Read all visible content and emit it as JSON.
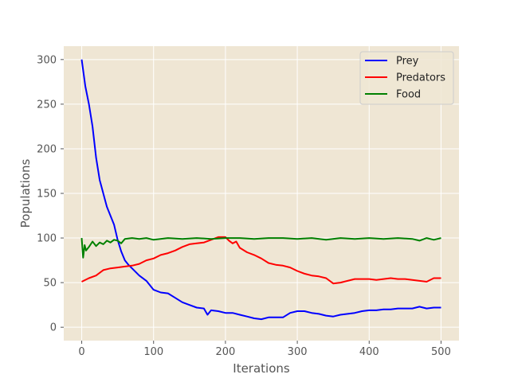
{
  "chart_data": {
    "type": "line",
    "title": "",
    "xlabel": "Iterations",
    "ylabel": "Populations",
    "xlim": [
      -25,
      525
    ],
    "ylim": [
      -15,
      315
    ],
    "xticks": [
      0,
      100,
      200,
      300,
      400,
      500
    ],
    "yticks": [
      0,
      50,
      100,
      150,
      200,
      250,
      300
    ],
    "grid": true,
    "legend_position": "top-right",
    "background": "#efe6d4",
    "series": [
      {
        "name": "Prey",
        "color": "#0000ff",
        "x": [
          0,
          5,
          10,
          15,
          20,
          25,
          30,
          35,
          40,
          45,
          50,
          55,
          60,
          65,
          70,
          80,
          90,
          100,
          110,
          120,
          130,
          140,
          150,
          160,
          170,
          175,
          180,
          190,
          200,
          210,
          220,
          230,
          240,
          250,
          260,
          270,
          280,
          290,
          300,
          310,
          320,
          330,
          340,
          350,
          360,
          370,
          380,
          390,
          400,
          410,
          420,
          430,
          440,
          450,
          460,
          470,
          480,
          490,
          500
        ],
        "values": [
          300,
          270,
          250,
          225,
          190,
          165,
          150,
          135,
          125,
          115,
          98,
          85,
          75,
          70,
          66,
          58,
          52,
          42,
          39,
          38,
          33,
          28,
          25,
          22,
          21,
          14,
          19,
          18,
          16,
          16,
          14,
          12,
          10,
          9,
          11,
          11,
          11,
          16,
          18,
          18,
          16,
          15,
          13,
          12,
          14,
          15,
          16,
          18,
          19,
          19,
          20,
          20,
          21,
          21,
          21,
          23,
          21,
          22,
          22
        ]
      },
      {
        "name": "Predators",
        "color": "#ff0000",
        "x": [
          0,
          10,
          20,
          30,
          40,
          50,
          60,
          70,
          80,
          90,
          100,
          110,
          120,
          130,
          140,
          150,
          160,
          170,
          180,
          190,
          200,
          205,
          210,
          215,
          220,
          230,
          240,
          250,
          260,
          270,
          280,
          290,
          300,
          310,
          320,
          330,
          340,
          350,
          360,
          370,
          380,
          390,
          400,
          410,
          420,
          430,
          440,
          450,
          460,
          470,
          480,
          490,
          500
        ],
        "values": [
          51,
          55,
          58,
          64,
          66,
          67,
          68,
          69,
          71,
          75,
          77,
          81,
          83,
          86,
          90,
          93,
          94,
          95,
          98,
          101,
          101,
          97,
          94,
          96,
          89,
          84,
          81,
          77,
          72,
          70,
          69,
          67,
          63,
          60,
          58,
          57,
          55,
          49,
          50,
          52,
          54,
          54,
          54,
          53,
          54,
          55,
          54,
          54,
          53,
          52,
          51,
          55,
          55
        ]
      },
      {
        "name": "Food",
        "color": "#008000",
        "x": [
          0,
          2,
          4,
          6,
          10,
          15,
          20,
          25,
          30,
          35,
          40,
          45,
          50,
          55,
          60,
          70,
          80,
          90,
          100,
          120,
          140,
          160,
          180,
          200,
          220,
          240,
          260,
          280,
          300,
          320,
          340,
          360,
          380,
          400,
          420,
          440,
          460,
          470,
          480,
          490,
          500
        ],
        "values": [
          100,
          78,
          92,
          86,
          90,
          96,
          91,
          95,
          93,
          97,
          95,
          98,
          97,
          94,
          99,
          100,
          99,
          100,
          98,
          100,
          99,
          100,
          99,
          100,
          100,
          99,
          100,
          100,
          99,
          100,
          98,
          100,
          99,
          100,
          99,
          100,
          99,
          97,
          100,
          98,
          100
        ]
      }
    ]
  }
}
